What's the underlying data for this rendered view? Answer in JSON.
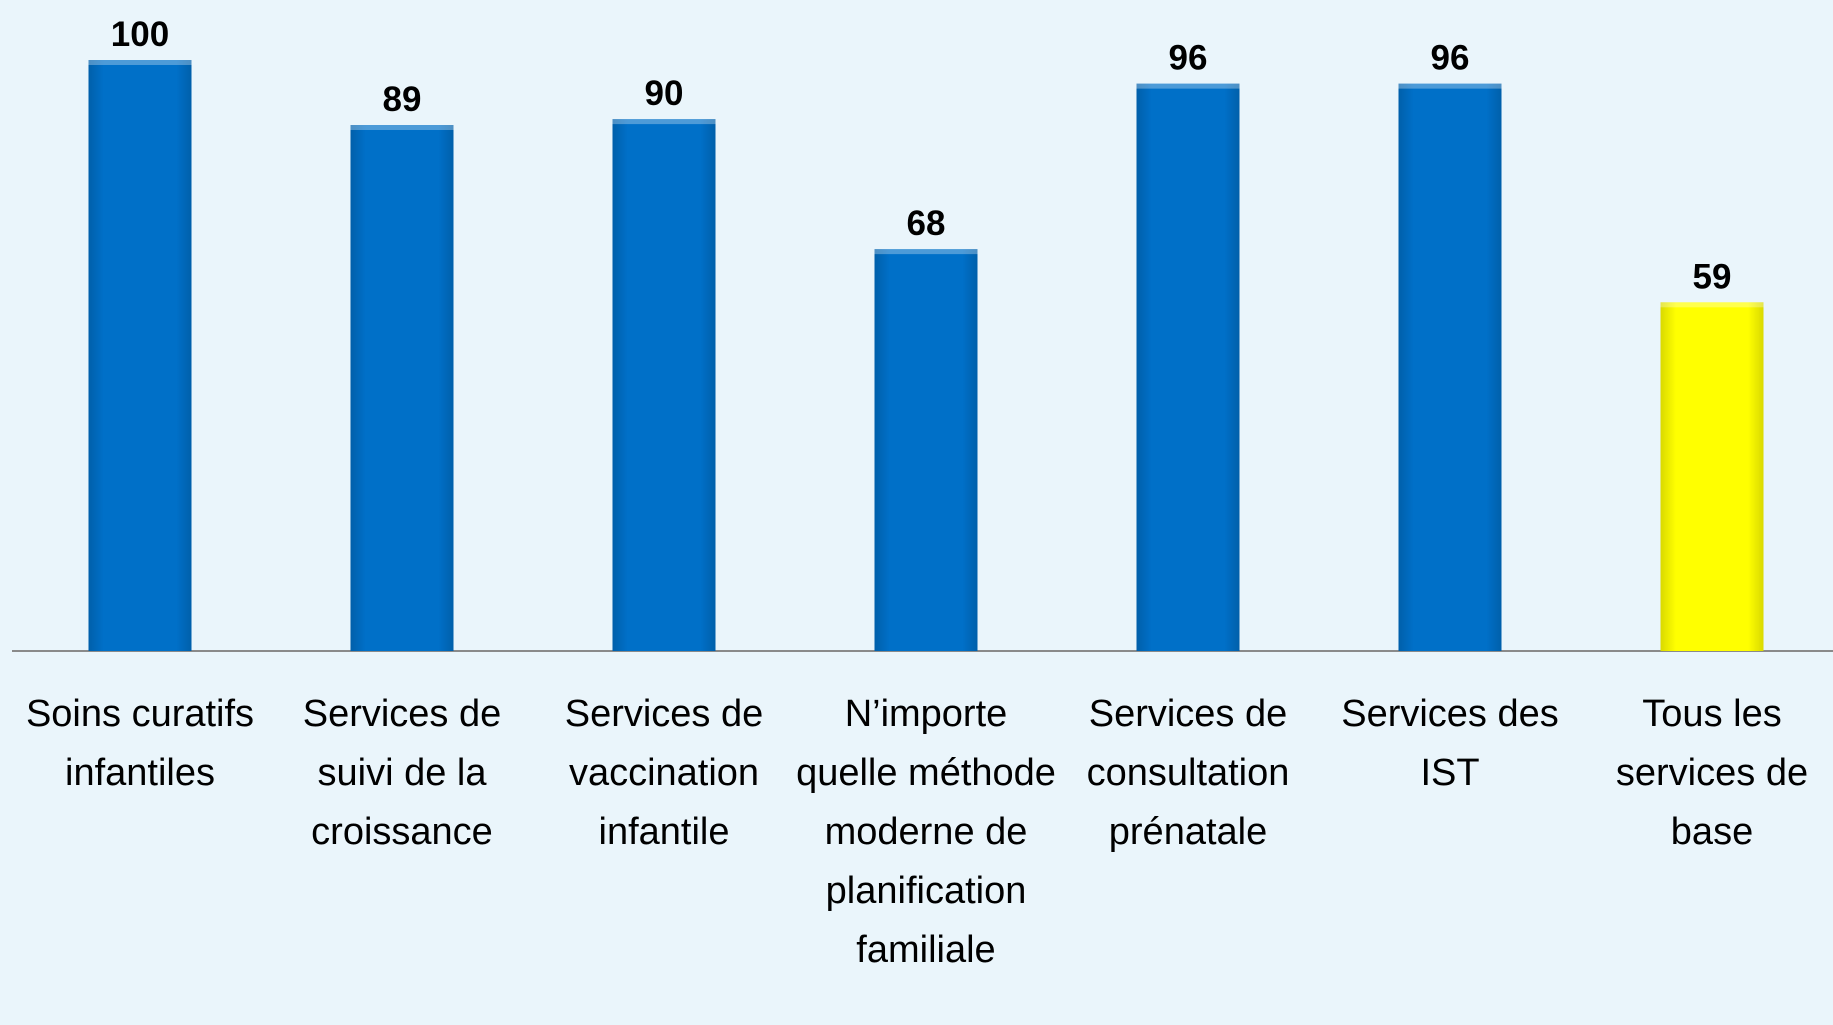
{
  "chart_data": {
    "type": "bar",
    "categories": [
      "Soins curatifs infantiles",
      "Services de suivi de la croissance",
      "Services de vaccination infantile",
      "N’importe quelle méthode moderne de planification familiale",
      "Services de consultation prénatale",
      "Services des IST",
      "Tous les services de base"
    ],
    "values": [
      100,
      89,
      90,
      68,
      96,
      96,
      59
    ],
    "colors": [
      "#0070c8",
      "#0070c8",
      "#0070c8",
      "#0070c8",
      "#0070c8",
      "#0070c8",
      "#ffff00"
    ]
  }
}
